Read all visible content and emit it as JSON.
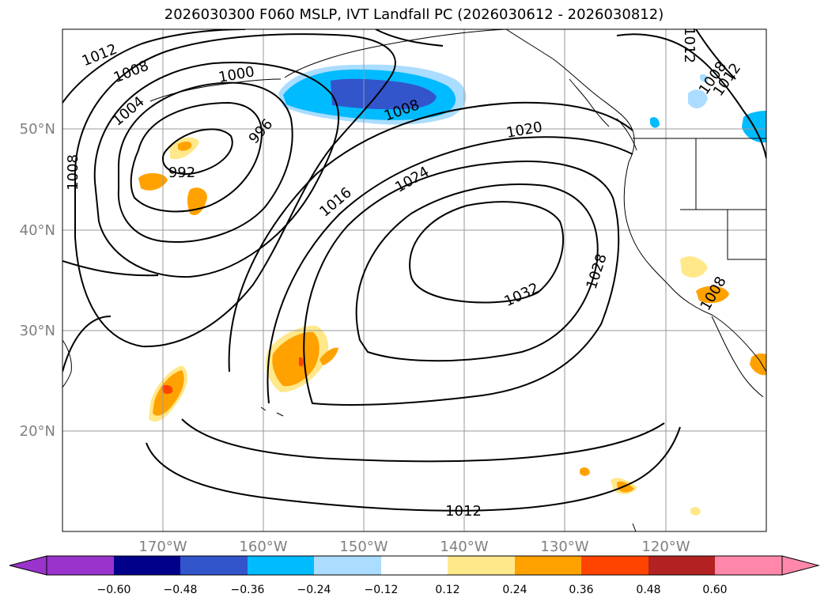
{
  "title": "2026030300 F060 MSLP, IVT Landfall PC (2026030612 - 2026030812)",
  "map": {
    "lat_labels": [
      "50°N",
      "40°N",
      "30°N",
      "20°N"
    ],
    "lon_labels": [
      "170°W",
      "160°W",
      "150°W",
      "140°W",
      "130°W",
      "120°W"
    ],
    "contour_labels": [
      "1012",
      "1008",
      "1004",
      "1000",
      "996",
      "992",
      "1008",
      "1008",
      "1016",
      "1020",
      "1024",
      "1028",
      "1032",
      "1012",
      "1012",
      "1008",
      "1012",
      "1008"
    ],
    "grid": true,
    "colors": {
      "coast": "#000000",
      "grid": "#999999"
    }
  },
  "colorbar": {
    "ticks": [
      "−0.60",
      "−0.48",
      "−0.36",
      "−0.24",
      "−0.12",
      "0.12",
      "0.24",
      "0.36",
      "0.48",
      "0.60"
    ],
    "colors": [
      "#9933cc",
      "#00008b",
      "#3355cc",
      "#00bbff",
      "#aaddff",
      "#ffffff",
      "#ffe88a",
      "#ffa200",
      "#ff4400",
      "#b22222",
      "#ff88aa"
    ]
  }
}
